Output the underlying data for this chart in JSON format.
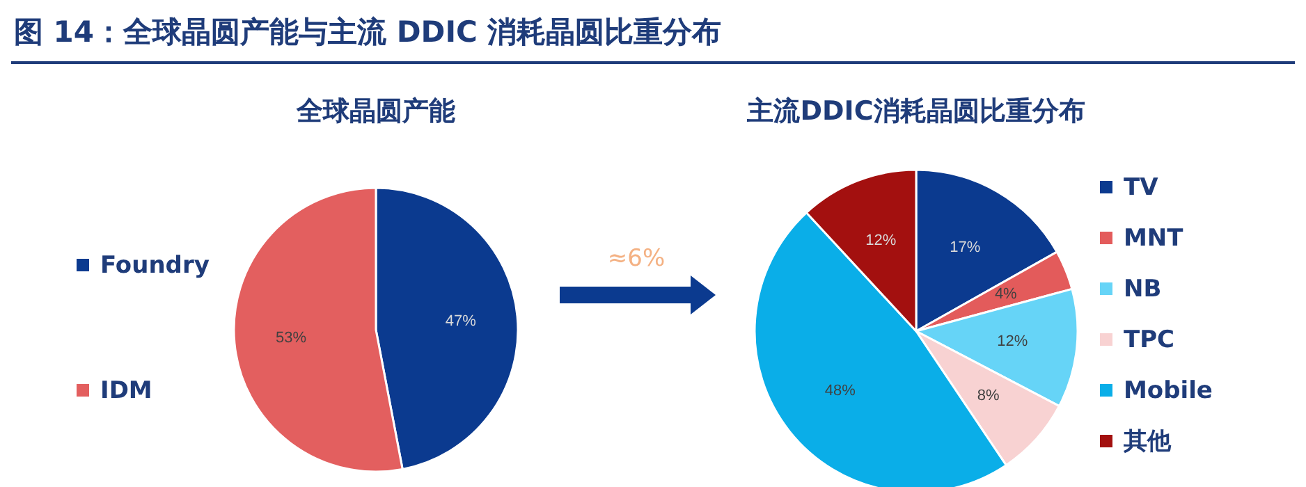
{
  "chart_data": [
    {
      "type": "pie",
      "title": "全球晶圆产能",
      "categories": [
        "Foundry",
        "IDM"
      ],
      "values": [
        47,
        53
      ],
      "colors": [
        "#0b3a8f",
        "#e35f5f"
      ],
      "value_labels": [
        "47%",
        "53%"
      ],
      "legend": "left",
      "annotations": [
        "图 14：全球晶圆产能与主流 DDIC 消耗晶圆比重分布"
      ]
    },
    {
      "type": "pie",
      "title": "主流DDIC消耗晶圆比重分布",
      "categories": [
        "TV",
        "MNT",
        "NB",
        "TPC",
        "Mobile",
        "其他"
      ],
      "values": [
        17,
        4,
        12,
        8,
        48,
        12
      ],
      "colors": [
        "#0b3a8f",
        "#e35b5b",
        "#66d4f7",
        "#f8d2d2",
        "#0aaee8",
        "#a3100f"
      ],
      "value_labels": [
        "17%",
        "4%",
        "12%",
        "8%",
        "48%",
        "12%"
      ],
      "legend": "right",
      "annotations": [
        "≈6%"
      ]
    }
  ]
}
